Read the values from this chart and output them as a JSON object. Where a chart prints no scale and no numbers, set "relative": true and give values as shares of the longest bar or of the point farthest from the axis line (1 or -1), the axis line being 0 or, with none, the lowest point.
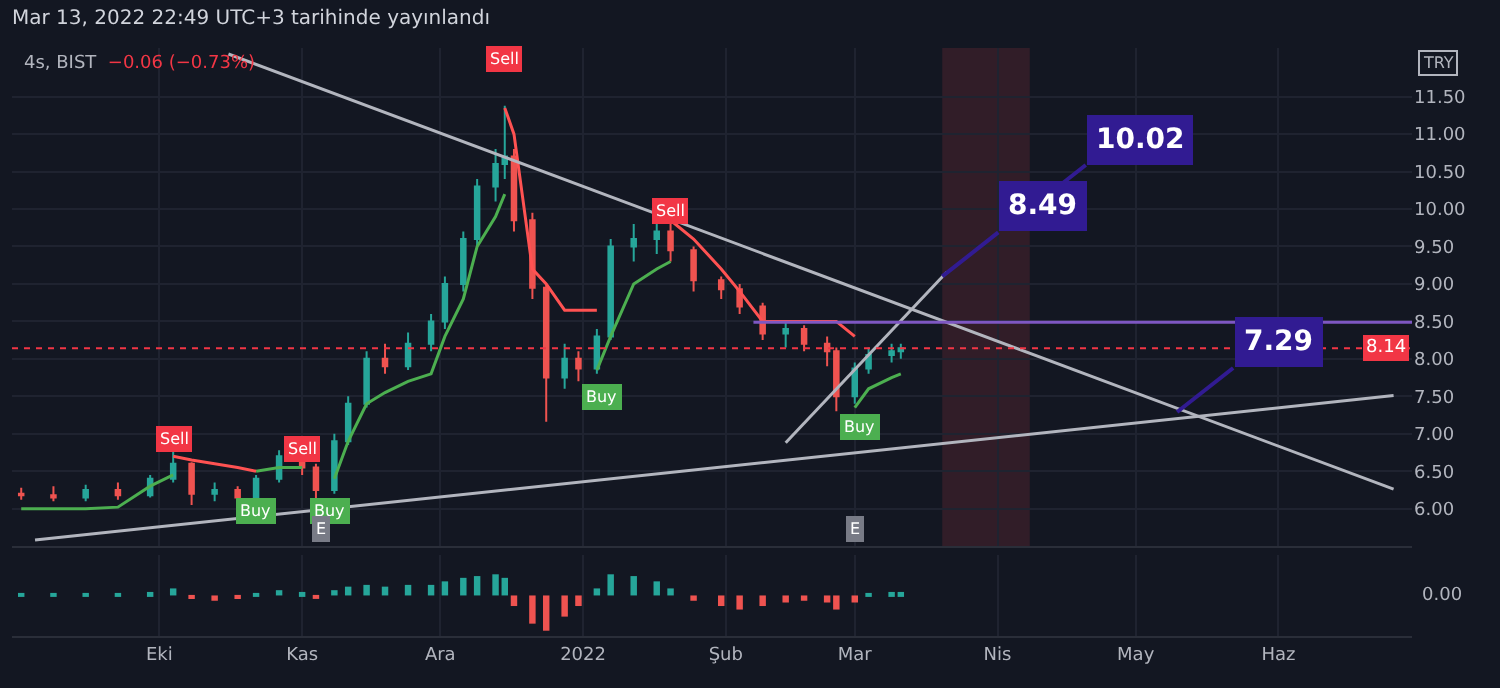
{
  "chart_data": [
    {
      "type": "candlestick",
      "title": "Mar 13, 2022 22:49 UTC+3 tarihinde yayınlandı",
      "subtitle": "4s, BIST",
      "ylabel": "TRY",
      "x": [
        "2021-09-01",
        "2021-09-08",
        "2021-09-15",
        "2021-09-22",
        "2021-09-29",
        "2021-10-04",
        "2021-10-08",
        "2021-10-13",
        "2021-10-18",
        "2021-10-22",
        "2021-10-27",
        "2021-11-01",
        "2021-11-04",
        "2021-11-08",
        "2021-11-11",
        "2021-11-15",
        "2021-11-19",
        "2021-11-24",
        "2021-11-29",
        "2021-12-02",
        "2021-12-06",
        "2021-12-09",
        "2021-12-13",
        "2021-12-15",
        "2021-12-17",
        "2021-12-21",
        "2021-12-24",
        "2021-12-28",
        "2021-12-31",
        "2022-01-04",
        "2022-01-07",
        "2022-01-12",
        "2022-01-17",
        "2022-01-20",
        "2022-01-25",
        "2022-01-31",
        "2022-02-04",
        "2022-02-09",
        "2022-02-14",
        "2022-02-18",
        "2022-02-23",
        "2022-02-25",
        "2022-03-01",
        "2022-03-04",
        "2022-03-09",
        "2022-03-11"
      ],
      "ohlc": [
        [
          6.2,
          6.28,
          6.12,
          6.18
        ],
        [
          6.18,
          6.3,
          6.1,
          6.15
        ],
        [
          6.15,
          6.32,
          6.1,
          6.25
        ],
        [
          6.25,
          6.35,
          6.12,
          6.18
        ],
        [
          6.18,
          6.45,
          6.15,
          6.4
        ],
        [
          6.4,
          6.8,
          6.35,
          6.6
        ],
        [
          6.6,
          6.62,
          6.05,
          6.2
        ],
        [
          6.2,
          6.35,
          6.1,
          6.25
        ],
        [
          6.25,
          6.3,
          6.05,
          6.15
        ],
        [
          6.15,
          6.45,
          6.1,
          6.4
        ],
        [
          6.4,
          6.78,
          6.35,
          6.7
        ],
        [
          6.7,
          6.8,
          6.45,
          6.55
        ],
        [
          6.55,
          6.6,
          6.1,
          6.25
        ],
        [
          6.25,
          7.0,
          6.2,
          6.9
        ],
        [
          6.9,
          7.5,
          6.85,
          7.4
        ],
        [
          7.4,
          8.1,
          7.35,
          8.0
        ],
        [
          8.0,
          8.2,
          7.8,
          7.9
        ],
        [
          7.9,
          8.35,
          7.85,
          8.2
        ],
        [
          8.2,
          8.6,
          8.1,
          8.5
        ],
        [
          8.5,
          9.1,
          8.4,
          9.0
        ],
        [
          9.0,
          9.7,
          8.9,
          9.6
        ],
        [
          9.6,
          10.4,
          9.5,
          10.3
        ],
        [
          10.3,
          10.8,
          10.1,
          10.6
        ],
        [
          10.6,
          11.38,
          10.4,
          10.7
        ],
        [
          10.7,
          10.8,
          9.7,
          9.85
        ],
        [
          9.85,
          9.95,
          8.8,
          8.95
        ],
        [
          8.95,
          9.0,
          7.16,
          7.75
        ],
        [
          7.75,
          8.2,
          7.6,
          8.0
        ],
        [
          8.0,
          8.1,
          7.7,
          7.87
        ],
        [
          7.87,
          8.4,
          7.8,
          8.3
        ],
        [
          8.3,
          9.6,
          8.25,
          9.5
        ],
        [
          9.5,
          9.8,
          9.3,
          9.6
        ],
        [
          9.6,
          9.85,
          9.4,
          9.7
        ],
        [
          9.7,
          9.8,
          9.3,
          9.45
        ],
        [
          9.45,
          9.5,
          8.9,
          9.05
        ],
        [
          9.05,
          9.1,
          8.8,
          8.93
        ],
        [
          8.93,
          9.0,
          8.6,
          8.7
        ],
        [
          8.7,
          8.75,
          8.25,
          8.34
        ],
        [
          8.34,
          8.5,
          8.15,
          8.4
        ],
        [
          8.4,
          8.45,
          8.1,
          8.2
        ],
        [
          8.2,
          8.3,
          7.9,
          8.1
        ],
        [
          8.1,
          8.15,
          7.3,
          7.5
        ],
        [
          7.5,
          7.95,
          7.4,
          7.87
        ],
        [
          7.87,
          8.15,
          7.8,
          8.05
        ],
        [
          8.05,
          8.2,
          7.95,
          8.1
        ],
        [
          8.1,
          8.2,
          8.0,
          8.14
        ]
      ],
      "series": [
        {
          "type": "line",
          "color": "#4caf50",
          "values": [
            6.0,
            6.0,
            6.0,
            6.02,
            6.3,
            6.45,
            null,
            null,
            null,
            6.5,
            6.55,
            6.55,
            null,
            6.4,
            6.9,
            7.4,
            7.55,
            7.7,
            7.8,
            8.3,
            8.8,
            9.5,
            9.9,
            10.2,
            null,
            null,
            null,
            null,
            null,
            7.85,
            8.3,
            9.0,
            9.2,
            9.3,
            null,
            null,
            null,
            null,
            null,
            null,
            null,
            null,
            7.35,
            7.6,
            7.75,
            7.8
          ]
        },
        {
          "type": "line",
          "color": "#ff5252",
          "values": [
            null,
            null,
            null,
            null,
            null,
            6.7,
            6.65,
            6.6,
            6.55,
            6.5,
            null,
            6.85,
            6.85,
            null,
            null,
            null,
            null,
            null,
            null,
            null,
            null,
            null,
            null,
            11.35,
            11.0,
            9.2,
            9.0,
            8.65,
            8.65,
            8.65,
            null,
            null,
            null,
            9.85,
            9.6,
            9.2,
            8.9,
            8.5,
            8.5,
            8.5,
            8.5,
            8.5,
            8.3,
            null,
            null,
            null
          ]
        },
        {
          "type": "line",
          "color": "#b2b5be",
          "x": [
            "2021-10-16",
            "2022-06-26"
          ],
          "values": [
            12.07,
            6.26
          ]
        },
        {
          "type": "line",
          "color": "#b2b5be",
          "x": [
            "2021-09-04",
            "2022-06-26"
          ],
          "values": [
            5.58,
            7.51
          ]
        },
        {
          "type": "line",
          "color": "#b2b5be",
          "x": [
            "2022-02-14",
            "2022-03-21"
          ],
          "values": [
            6.88,
            9.16
          ]
        },
        {
          "type": "line",
          "color": "#7e57c2",
          "x": [
            "2022-02-07",
            "2022-06-30"
          ],
          "values": [
            8.49,
            8.49
          ]
        },
        {
          "type": "scatter",
          "name": "Sell",
          "color": "#f23645",
          "x": [
            "2021-10-04",
            "2021-11-01",
            "2021-12-15",
            "2022-01-20"
          ],
          "values": [
            6.92,
            6.8,
            12.0,
            9.97
          ]
        },
        {
          "type": "scatter",
          "name": "Buy",
          "color": "#4caf50",
          "x": [
            "2021-10-22",
            "2021-11-07",
            "2022-01-05",
            "2022-03-02"
          ],
          "values": [
            5.96,
            5.97,
            7.5,
            7.1
          ]
        },
        {
          "type": "scatter",
          "name": "E",
          "color": "#787b86",
          "x": [
            "2021-11-05",
            "2022-03-01"
          ],
          "values": [
            5.72,
            5.72
          ]
        }
      ],
      "ref_lines": [
        {
          "axis": "y",
          "value": 8.14,
          "label": "8.14",
          "color": "#f23645",
          "line_style": "dotted"
        }
      ],
      "bands": [
        {
          "axis": "x",
          "from": "2022-03-20",
          "to": "2022-04-08",
          "color": "#3a1f2a"
        }
      ],
      "annotations": [
        "−0.06 (−0.73%)",
        {
          "text": "10.02",
          "x": "2022-04-08",
          "y": 10.0
        },
        {
          "text": "8.49",
          "x": "2022-03-20",
          "y": 9.1
        },
        {
          "text": "7.29",
          "x": "2022-05-10",
          "y": 7.29
        }
      ],
      "xlim": [
        "2021-08-30",
        "2022-06-30"
      ],
      "ylim": [
        5.5,
        12.15
      ],
      "xticks": [
        {
          "value": "2021-10-01",
          "label": null
        },
        {
          "value": "2021-11-01",
          "label": null
        },
        {
          "value": "2021-12-01",
          "label": null
        },
        {
          "value": "2022-01-01",
          "label": null
        },
        {
          "value": "2022-02-01",
          "label": null
        },
        {
          "value": "2022-03-01",
          "label": null
        },
        {
          "value": "2022-04-01",
          "label": null
        },
        {
          "value": "2022-05-01",
          "label": null
        },
        {
          "value": "2022-06-01",
          "label": null
        }
      ],
      "yticks": [
        {
          "value": 6,
          "label": "6.00"
        },
        {
          "value": 6.5,
          "label": "6.50"
        },
        {
          "value": 7,
          "label": "7.00"
        },
        {
          "value": 7.5,
          "label": "7.50"
        },
        {
          "value": 8,
          "label": "8.00"
        },
        {
          "value": 8.5,
          "label": "8.50"
        },
        {
          "value": 9,
          "label": "9.00"
        },
        {
          "value": 9.5,
          "label": "9.50"
        },
        {
          "value": 10,
          "label": "10.00"
        },
        {
          "value": 10.5,
          "label": "10.50"
        },
        {
          "value": 11,
          "label": "11.00"
        },
        {
          "value": 11.5,
          "label": "11.50"
        }
      ],
      "grid": true,
      "tick_labels": "y"
    },
    {
      "type": "bar",
      "relative": true,
      "x": [
        "2021-09-01",
        "2021-09-08",
        "2021-09-15",
        "2021-09-22",
        "2021-09-29",
        "2021-10-04",
        "2021-10-08",
        "2021-10-13",
        "2021-10-18",
        "2021-10-22",
        "2021-10-27",
        "2021-11-01",
        "2021-11-04",
        "2021-11-08",
        "2021-11-11",
        "2021-11-15",
        "2021-11-19",
        "2021-11-24",
        "2021-11-29",
        "2021-12-02",
        "2021-12-06",
        "2021-12-09",
        "2021-12-13",
        "2021-12-15",
        "2021-12-17",
        "2021-12-21",
        "2021-12-24",
        "2021-12-28",
        "2021-12-31",
        "2022-01-04",
        "2022-01-07",
        "2022-01-12",
        "2022-01-17",
        "2022-01-20",
        "2022-01-25",
        "2022-01-31",
        "2022-02-04",
        "2022-02-09",
        "2022-02-14",
        "2022-02-18",
        "2022-02-23",
        "2022-02-25",
        "2022-03-01",
        "2022-03-04",
        "2022-03-09",
        "2022-03-11"
      ],
      "values": [
        0.05,
        0.05,
        0.03,
        0.05,
        0.1,
        0.2,
        -0.1,
        -0.15,
        -0.1,
        0.05,
        0.15,
        0.1,
        -0.05,
        0.15,
        0.25,
        0.3,
        0.25,
        0.3,
        0.3,
        0.4,
        0.5,
        0.55,
        0.6,
        0.5,
        -0.3,
        -0.8,
        -1,
        -0.6,
        -0.3,
        0.2,
        0.6,
        0.55,
        0.4,
        0.2,
        -0.15,
        -0.3,
        -0.4,
        -0.3,
        -0.2,
        -0.15,
        -0.2,
        -0.4,
        -0.2,
        0.05,
        0.1,
        0.1
      ],
      "colors": [
        "#26a69a",
        "#26a69a",
        "#26a69a",
        "#26a69a",
        "#26a69a",
        "#26a69a",
        "#ef5350",
        "#ef5350",
        "#ef5350",
        "#26a69a",
        "#26a69a",
        "#26a69a",
        "#ef5350",
        "#26a69a",
        "#26a69a",
        "#26a69a",
        "#26a69a",
        "#26a69a",
        "#26a69a",
        "#26a69a",
        "#26a69a",
        "#26a69a",
        "#26a69a",
        "#26a69a",
        "#ef5350",
        "#ef5350",
        "#ef5350",
        "#ef5350",
        "#ef5350",
        "#26a69a",
        "#26a69a",
        "#26a69a",
        "#26a69a",
        "#26a69a",
        "#ef5350",
        "#ef5350",
        "#ef5350",
        "#ef5350",
        "#ef5350",
        "#ef5350",
        "#ef5350",
        "#ef5350",
        "#ef5350",
        "#26a69a",
        "#26a69a",
        "#26a69a"
      ],
      "annotations": [
        "0.00"
      ],
      "xlim": [
        "2021-08-30",
        "2022-06-30"
      ],
      "xticks": [
        {
          "value": "2021-10-01",
          "label": "Eki"
        },
        {
          "value": "2021-11-01",
          "label": "Kas"
        },
        {
          "value": "2021-12-01",
          "label": "Ara"
        },
        {
          "value": "2022-01-01",
          "label": "2022"
        },
        {
          "value": "2022-02-01",
          "label": "Şub"
        },
        {
          "value": "2022-03-01",
          "label": "Mar"
        },
        {
          "value": "2022-04-01",
          "label": "Nis"
        },
        {
          "value": "2022-05-01",
          "label": "May"
        },
        {
          "value": "2022-06-01",
          "label": "Haz"
        }
      ],
      "grid": true,
      "tick_labels": "x"
    }
  ]
}
